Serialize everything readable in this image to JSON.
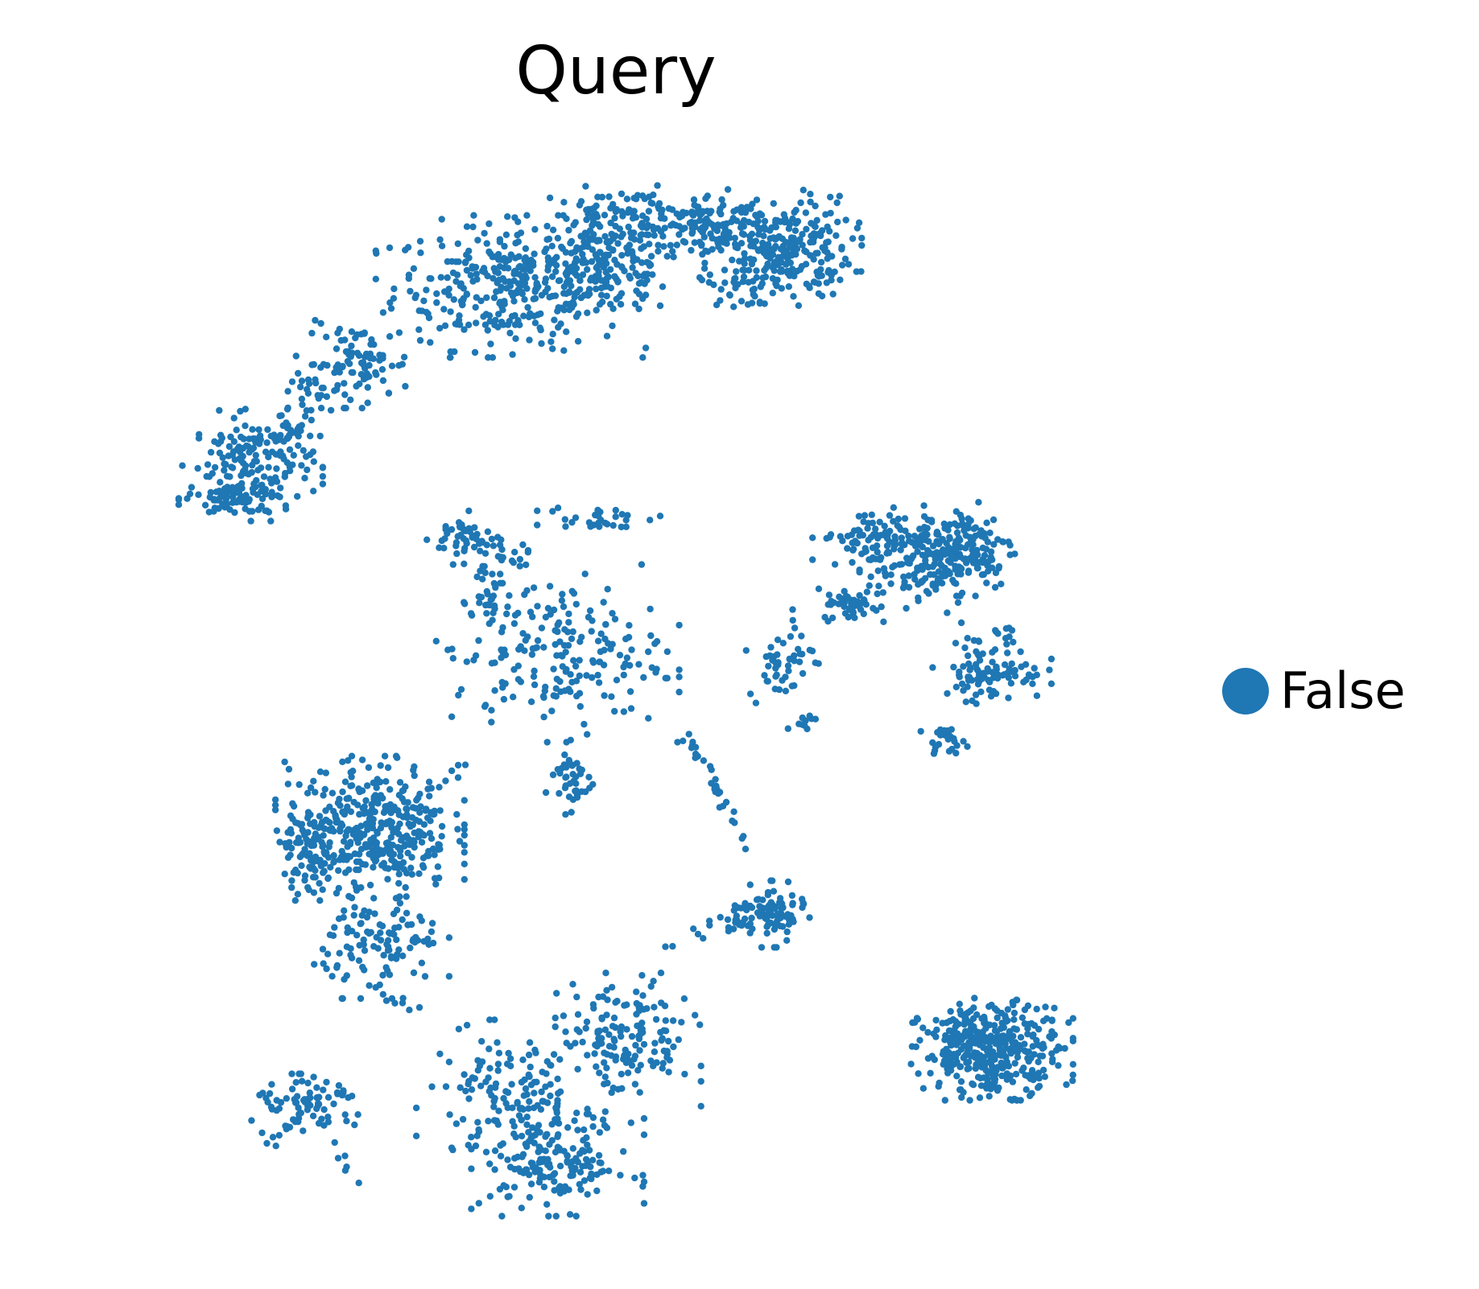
{
  "chart_data": {
    "type": "scatter",
    "title": "Query",
    "xlabel": "",
    "ylabel": "",
    "grid": false,
    "axes_visible": false,
    "legend_placement": "right",
    "xlim": [
      0,
      100
    ],
    "ylim": [
      0,
      100
    ],
    "series": [
      {
        "name": "False",
        "color": "#1f77b4",
        "clusters": [
          {
            "cx": 32,
            "cy": 77,
            "sx": 5.0,
            "sy": 3.2,
            "n": 320
          },
          {
            "cx": 40,
            "cy": 79,
            "sx": 3.2,
            "sy": 2.6,
            "n": 160
          },
          {
            "cx": 42,
            "cy": 84,
            "sx": 4.2,
            "sy": 1.5,
            "n": 110
          },
          {
            "cx": 49,
            "cy": 83,
            "sx": 2.6,
            "sy": 1.8,
            "n": 90
          },
          {
            "cx": 55,
            "cy": 81,
            "sx": 3.0,
            "sy": 2.6,
            "n": 260
          },
          {
            "cx": 52,
            "cy": 77,
            "sx": 1.6,
            "sy": 1.0,
            "n": 30
          },
          {
            "cx": 31,
            "cy": 78,
            "sx": 0.6,
            "sy": 0.4,
            "n": 4
          },
          {
            "cx": 19,
            "cy": 69,
            "sx": 2.3,
            "sy": 2.0,
            "n": 90
          },
          {
            "cx": 16,
            "cy": 66,
            "sx": 1.3,
            "sy": 0.9,
            "n": 20
          },
          {
            "cx": 10,
            "cy": 59,
            "sx": 2.6,
            "sy": 2.3,
            "n": 150
          },
          {
            "cx": 9,
            "cy": 55,
            "sx": 2.3,
            "sy": 1.0,
            "n": 70
          },
          {
            "cx": 13,
            "cy": 62,
            "sx": 1.2,
            "sy": 1.2,
            "n": 20
          },
          {
            "cx": 28,
            "cy": 51,
            "sx": 1.4,
            "sy": 1.2,
            "n": 40
          },
          {
            "cx": 31,
            "cy": 49,
            "sx": 1.3,
            "sy": 0.8,
            "n": 25
          },
          {
            "cx": 30,
            "cy": 45,
            "sx": 0.5,
            "sy": 1.5,
            "n": 15
          },
          {
            "cx": 40,
            "cy": 53,
            "sx": 2.5,
            "sy": 0.6,
            "n": 30
          },
          {
            "cx": 63,
            "cy": 51,
            "sx": 2.3,
            "sy": 1.5,
            "n": 90
          },
          {
            "cx": 67,
            "cy": 48,
            "sx": 2.3,
            "sy": 2.0,
            "n": 130
          },
          {
            "cx": 71,
            "cy": 50,
            "sx": 2.0,
            "sy": 2.2,
            "n": 120
          },
          {
            "cx": 61,
            "cy": 44,
            "sx": 1.2,
            "sy": 0.8,
            "n": 45
          },
          {
            "cx": 73,
            "cy": 37,
            "sx": 2.2,
            "sy": 1.4,
            "n": 90
          },
          {
            "cx": 74,
            "cy": 41,
            "sx": 0.5,
            "sy": 0.8,
            "n": 10
          },
          {
            "cx": 55,
            "cy": 38,
            "sx": 1.4,
            "sy": 1.8,
            "n": 45
          },
          {
            "cx": 57,
            "cy": 32,
            "sx": 0.6,
            "sy": 0.6,
            "n": 10
          },
          {
            "cx": 69,
            "cy": 30,
            "sx": 0.9,
            "sy": 0.6,
            "n": 25
          },
          {
            "cx": 36,
            "cy": 39,
            "sx": 4.5,
            "sy": 4.0,
            "n": 200
          },
          {
            "cx": 37,
            "cy": 26,
            "sx": 1.0,
            "sy": 1.6,
            "n": 40
          },
          {
            "cx": 20,
            "cy": 21,
            "sx": 3.5,
            "sy": 3.2,
            "n": 400
          },
          {
            "cx": 15,
            "cy": 18,
            "sx": 1.2,
            "sy": 2.0,
            "n": 60
          },
          {
            "cx": 21,
            "cy": 9,
            "sx": 2.5,
            "sy": 2.5,
            "n": 110
          },
          {
            "cx": 15,
            "cy": -8,
            "sx": 2.5,
            "sy": 1.5,
            "n": 70
          },
          {
            "cx": 32,
            "cy": -7,
            "sx": 3.5,
            "sy": 3.5,
            "n": 160
          },
          {
            "cx": 36,
            "cy": -14,
            "sx": 3.2,
            "sy": 2.3,
            "n": 150
          },
          {
            "cx": 42,
            "cy": -1,
            "sx": 2.7,
            "sy": 3.0,
            "n": 150
          },
          {
            "cx": 54,
            "cy": 12,
            "sx": 1.5,
            "sy": 1.5,
            "n": 100
          },
          {
            "cx": 73,
            "cy": -2,
            "sx": 3.0,
            "sy": 2.3,
            "n": 380
          }
        ],
        "bridges": [
          {
            "from": [
              47,
              31
            ],
            "to": [
              52,
              19
            ],
            "n": 30
          },
          {
            "from": [
              45,
              8
            ],
            "to": [
              52,
              13
            ],
            "n": 15
          },
          {
            "from": [
              26,
              25
            ],
            "to": [
              28,
              28
            ],
            "n": 5
          },
          {
            "from": [
              30,
              32
            ],
            "to": [
              30,
              34
            ],
            "n": 3
          },
          {
            "from": [
              11,
              -12
            ],
            "to": [
              18,
              -6
            ],
            "n": 15
          },
          {
            "from": [
              17,
              -12
            ],
            "to": [
              19,
              -16
            ],
            "n": 6
          },
          {
            "from": [
              13,
              62
            ],
            "to": [
              15,
              66
            ],
            "n": 6
          },
          {
            "from": [
              29,
              47
            ],
            "to": [
              31,
              42
            ],
            "n": 6
          },
          {
            "from": [
              20,
              5
            ],
            "to": [
              24,
              2
            ],
            "n": 10
          },
          {
            "from": [
              56,
              44
            ],
            "to": [
              56,
              40
            ],
            "n": 4
          },
          {
            "from": [
              69,
              43
            ],
            "to": [
              72,
              40
            ],
            "n": 5
          }
        ]
      }
    ]
  }
}
